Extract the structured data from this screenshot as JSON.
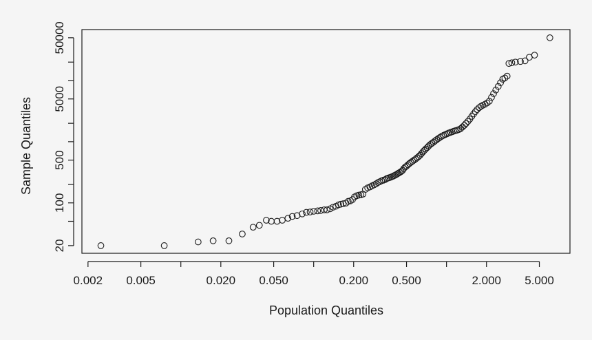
{
  "chart_data": {
    "type": "scatter",
    "title": "",
    "xlabel": "Population Quantiles",
    "ylabel": "Sample Quantiles",
    "x_scale": "log",
    "y_scale": "log",
    "xlim": [
      0.0018,
      8.5
    ],
    "ylim": [
      15,
      68000
    ],
    "grid": false,
    "marker": "open-circle",
    "colors": {
      "background": "#f5f5f5",
      "ink": "#1a1a1a"
    },
    "x_ticks": [
      {
        "value": 0.002,
        "label": "0.002"
      },
      {
        "value": 0.005,
        "label": "0.005"
      },
      {
        "value": 0.01,
        "label": ""
      },
      {
        "value": 0.02,
        "label": "0.020"
      },
      {
        "value": 0.05,
        "label": "0.050"
      },
      {
        "value": 0.1,
        "label": ""
      },
      {
        "value": 0.2,
        "label": "0.200"
      },
      {
        "value": 0.5,
        "label": "0.500"
      },
      {
        "value": 1,
        "label": ""
      },
      {
        "value": 2,
        "label": "2.000"
      },
      {
        "value": 5,
        "label": "5.000"
      }
    ],
    "y_ticks": [
      {
        "value": 20,
        "label": "20"
      },
      {
        "value": 50,
        "label": ""
      },
      {
        "value": 100,
        "label": "100"
      },
      {
        "value": 200,
        "label": ""
      },
      {
        "value": 500,
        "label": "500"
      },
      {
        "value": 1000,
        "label": ""
      },
      {
        "value": 2000,
        "label": ""
      },
      {
        "value": 5000,
        "label": "5000"
      },
      {
        "value": 10000,
        "label": ""
      },
      {
        "value": 20000,
        "label": ""
      },
      {
        "value": 50000,
        "label": "50000"
      }
    ],
    "points": [
      [
        0.0025,
        20
      ],
      [
        0.0075,
        20
      ],
      [
        0.0135,
        23
      ],
      [
        0.0175,
        24
      ],
      [
        0.023,
        24
      ],
      [
        0.029,
        31
      ],
      [
        0.035,
        40
      ],
      [
        0.039,
        43
      ],
      [
        0.044,
        52
      ],
      [
        0.048,
        50
      ],
      [
        0.053,
        50
      ],
      [
        0.058,
        52
      ],
      [
        0.064,
        56
      ],
      [
        0.069,
        60
      ],
      [
        0.075,
        62
      ],
      [
        0.082,
        66
      ],
      [
        0.088,
        70
      ],
      [
        0.094,
        71
      ],
      [
        0.1,
        73
      ],
      [
        0.107,
        74
      ],
      [
        0.113,
        75
      ],
      [
        0.12,
        77
      ],
      [
        0.126,
        77
      ],
      [
        0.133,
        80
      ],
      [
        0.14,
        85
      ],
      [
        0.147,
        88
      ],
      [
        0.154,
        93
      ],
      [
        0.16,
        95
      ],
      [
        0.167,
        97
      ],
      [
        0.175,
        99
      ],
      [
        0.182,
        106
      ],
      [
        0.189,
        108
      ],
      [
        0.196,
        113
      ],
      [
        0.203,
        125
      ],
      [
        0.211,
        131
      ],
      [
        0.219,
        134
      ],
      [
        0.227,
        136
      ],
      [
        0.235,
        139
      ],
      [
        0.245,
        166
      ],
      [
        0.255,
        176
      ],
      [
        0.265,
        182
      ],
      [
        0.275,
        190
      ],
      [
        0.285,
        197
      ],
      [
        0.295,
        205
      ],
      [
        0.305,
        215
      ],
      [
        0.315,
        222
      ],
      [
        0.325,
        230
      ],
      [
        0.335,
        235
      ],
      [
        0.345,
        240
      ],
      [
        0.355,
        250
      ],
      [
        0.365,
        255
      ],
      [
        0.375,
        260
      ],
      [
        0.385,
        266
      ],
      [
        0.395,
        272
      ],
      [
        0.405,
        280
      ],
      [
        0.415,
        288
      ],
      [
        0.425,
        296
      ],
      [
        0.435,
        306
      ],
      [
        0.445,
        315
      ],
      [
        0.455,
        325
      ],
      [
        0.466,
        338
      ],
      [
        0.477,
        365
      ],
      [
        0.489,
        385
      ],
      [
        0.501,
        400
      ],
      [
        0.513,
        420
      ],
      [
        0.526,
        440
      ],
      [
        0.54,
        460
      ],
      [
        0.555,
        480
      ],
      [
        0.57,
        500
      ],
      [
        0.585,
        520
      ],
      [
        0.6,
        545
      ],
      [
        0.616,
        570
      ],
      [
        0.632,
        600
      ],
      [
        0.648,
        640
      ],
      [
        0.664,
        680
      ],
      [
        0.68,
        720
      ],
      [
        0.697,
        760
      ],
      [
        0.715,
        800
      ],
      [
        0.734,
        850
      ],
      [
        0.754,
        900
      ],
      [
        0.775,
        940
      ],
      [
        0.797,
        980
      ],
      [
        0.82,
        1030
      ],
      [
        0.844,
        1080
      ],
      [
        0.869,
        1130
      ],
      [
        0.895,
        1180
      ],
      [
        0.922,
        1230
      ],
      [
        0.95,
        1270
      ],
      [
        0.98,
        1310
      ],
      [
        1.01,
        1350
      ],
      [
        1.04,
        1390
      ],
      [
        1.07,
        1420
      ],
      [
        1.1,
        1450
      ],
      [
        1.13,
        1480
      ],
      [
        1.16,
        1510
      ],
      [
        1.2,
        1540
      ],
      [
        1.24,
        1580
      ],
      [
        1.28,
        1640
      ],
      [
        1.32,
        1740
      ],
      [
        1.36,
        1850
      ],
      [
        1.4,
        1980
      ],
      [
        1.45,
        2150
      ],
      [
        1.5,
        2350
      ],
      [
        1.55,
        2600
      ],
      [
        1.6,
        2850
      ],
      [
        1.65,
        3100
      ],
      [
        1.7,
        3350
      ],
      [
        1.76,
        3600
      ],
      [
        1.82,
        3800
      ],
      [
        1.88,
        3950
      ],
      [
        1.95,
        4100
      ],
      [
        2.02,
        4300
      ],
      [
        2.1,
        4600
      ],
      [
        2.18,
        5300
      ],
      [
        2.26,
        6100
      ],
      [
        2.35,
        7000
      ],
      [
        2.45,
        8000
      ],
      [
        2.55,
        9200
      ],
      [
        2.65,
        10500
      ],
      [
        2.75,
        11000
      ],
      [
        2.86,
        11800
      ],
      [
        2.95,
        19000
      ],
      [
        3.1,
        19500
      ],
      [
        3.3,
        20000
      ],
      [
        3.6,
        20500
      ],
      [
        3.9,
        21000
      ],
      [
        4.2,
        24000
      ],
      [
        4.6,
        26000
      ],
      [
        6.0,
        50000
      ]
    ]
  }
}
